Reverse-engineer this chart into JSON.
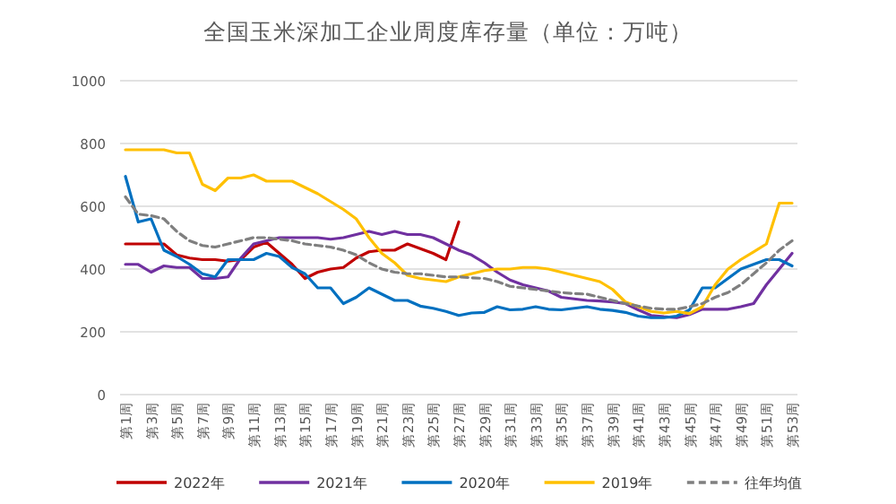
{
  "chart_data": {
    "type": "line",
    "title": "全国玉米深加工企业周度库存量（单位：万吨）",
    "categories": [
      "第1周",
      null,
      "第3周",
      null,
      "第5周",
      null,
      "第7周",
      null,
      "第9周",
      null,
      "第11周",
      null,
      "第13周",
      null,
      "第15周",
      null,
      "第17周",
      null,
      "第19周",
      null,
      "第21周",
      null,
      "第23周",
      null,
      "第25周",
      null,
      "第27周",
      null,
      "第29周",
      null,
      "第31周",
      null,
      "第33周",
      null,
      "第35周",
      null,
      "第37周",
      null,
      "第39周",
      null,
      "第41周",
      null,
      "第43周",
      null,
      "第45周",
      null,
      "第47周",
      null,
      "第49周",
      null,
      "第51周",
      null,
      "第53周"
    ],
    "series": [
      {
        "name": "2022年",
        "color": "#c00000",
        "values": [
          480,
          480,
          480,
          480,
          445,
          435,
          430,
          430,
          425,
          430,
          470,
          485,
          450,
          415,
          370,
          390,
          400,
          405,
          435,
          455,
          460,
          460,
          480,
          465,
          450,
          430,
          550,
          null,
          null,
          null,
          null,
          null,
          null,
          null,
          null,
          null,
          null,
          null,
          null,
          null,
          null,
          null,
          null,
          null,
          null,
          null,
          null,
          null,
          null,
          null,
          null,
          null,
          null
        ]
      },
      {
        "name": "2021年",
        "color": "#7030a0",
        "values": [
          415,
          415,
          390,
          410,
          405,
          405,
          370,
          370,
          375,
          435,
          480,
          490,
          500,
          500,
          500,
          500,
          495,
          500,
          510,
          520,
          510,
          520,
          510,
          510,
          500,
          480,
          460,
          445,
          420,
          390,
          365,
          350,
          340,
          330,
          310,
          305,
          300,
          298,
          295,
          290,
          270,
          252,
          248,
          245,
          255,
          272,
          272,
          272,
          280,
          290,
          350,
          400,
          450
        ]
      },
      {
        "name": "2020年",
        "color": "#0070c0",
        "values": [
          695,
          550,
          560,
          460,
          440,
          415,
          385,
          375,
          430,
          430,
          430,
          450,
          440,
          405,
          385,
          340,
          340,
          290,
          310,
          340,
          320,
          300,
          300,
          282,
          275,
          265,
          252,
          260,
          262,
          280,
          270,
          272,
          280,
          272,
          270,
          275,
          280,
          272,
          268,
          262,
          250,
          245,
          245,
          250,
          270,
          340,
          340,
          370,
          400,
          415,
          430,
          430,
          410
        ]
      },
      {
        "name": "2019年",
        "color": "#ffc000",
        "values": [
          780,
          780,
          780,
          780,
          770,
          770,
          670,
          650,
          690,
          690,
          700,
          680,
          680,
          680,
          660,
          640,
          615,
          590,
          560,
          500,
          450,
          420,
          380,
          370,
          365,
          360,
          375,
          385,
          395,
          400,
          400,
          405,
          405,
          400,
          390,
          380,
          370,
          360,
          335,
          295,
          280,
          265,
          260,
          265,
          258,
          280,
          350,
          400,
          430,
          455,
          480,
          610,
          610
        ]
      },
      {
        "name": "往年均值",
        "color": "#7f7f7f",
        "line_style": "dashed",
        "values": [
          630,
          575,
          570,
          560,
          520,
          490,
          475,
          470,
          480,
          490,
          500,
          500,
          495,
          490,
          480,
          475,
          470,
          460,
          445,
          420,
          400,
          390,
          385,
          385,
          380,
          375,
          375,
          372,
          370,
          360,
          345,
          340,
          335,
          330,
          325,
          322,
          320,
          310,
          300,
          290,
          282,
          275,
          272,
          272,
          280,
          290,
          310,
          325,
          350,
          385,
          420,
          460,
          490
        ]
      }
    ],
    "ylim": [
      0,
      1000
    ],
    "yticks": [
      0,
      200,
      400,
      600,
      800,
      1000
    ],
    "grid": "y",
    "legend": "bottom",
    "marker": "none"
  }
}
